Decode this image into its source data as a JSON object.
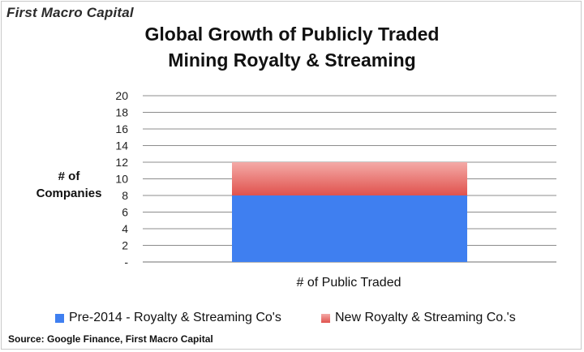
{
  "brand": "First Macro Capital",
  "source": "Source: Google Finance, First Macro Capital",
  "colors": {
    "series_0": "#3f7ff0",
    "series_1_top": "#f4aaa7",
    "series_1_bottom": "#e0524d",
    "grid": "#8c8c8c",
    "axis_text": "#222222"
  },
  "chart_data": {
    "type": "bar",
    "stacked": true,
    "title_lines": [
      "Global Growth of Publicly Traded",
      "Mining Royalty & Streaming"
    ],
    "ylabel_lines": [
      "# of",
      "Companies"
    ],
    "xlabel": "# of Public  Traded",
    "categories": [
      ""
    ],
    "series": [
      {
        "name": "Pre-2014 - Royalty & Streaming Co's",
        "values": [
          8
        ]
      },
      {
        "name": "New Royalty & Streaming Co.'s",
        "values": [
          4
        ]
      }
    ],
    "ylim": [
      0,
      20
    ],
    "yticks": [
      "-",
      "2",
      "4",
      "6",
      "8",
      "10",
      "12",
      "14",
      "16",
      "18",
      "20"
    ],
    "grid": true,
    "legend": "bottom"
  }
}
